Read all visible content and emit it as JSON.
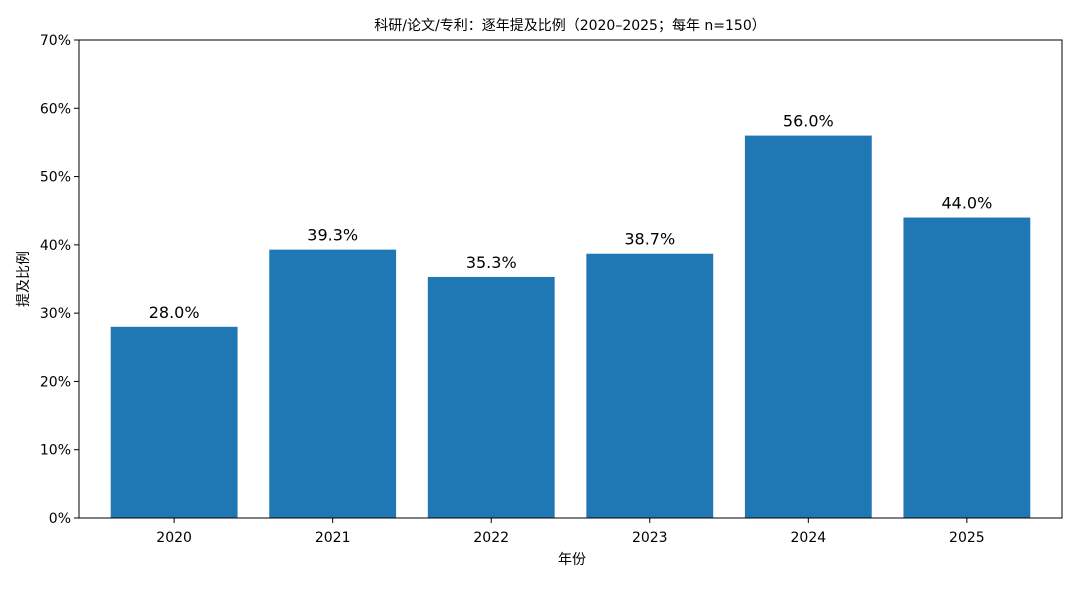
{
  "chart_data": {
    "type": "bar",
    "title": "科研/论文/专利：逐年提及比例（2020–2025；每年 n=150）",
    "xlabel": "年份",
    "ylabel": "提及比例",
    "categories": [
      "2020",
      "2021",
      "2022",
      "2023",
      "2024",
      "2025"
    ],
    "values": [
      28.0,
      39.3,
      35.3,
      38.7,
      56.0,
      44.0
    ],
    "data_labels": [
      "28.0%",
      "39.3%",
      "35.3%",
      "38.7%",
      "56.0%",
      "44.0%"
    ],
    "ylim": [
      0,
      70
    ],
    "yticks": [
      0,
      10,
      20,
      30,
      40,
      50,
      60,
      70
    ],
    "ytick_labels": [
      "0%",
      "10%",
      "20%",
      "30%",
      "40%",
      "50%",
      "60%",
      "70%"
    ],
    "grid": false,
    "bar_color": "#1f77b4"
  }
}
